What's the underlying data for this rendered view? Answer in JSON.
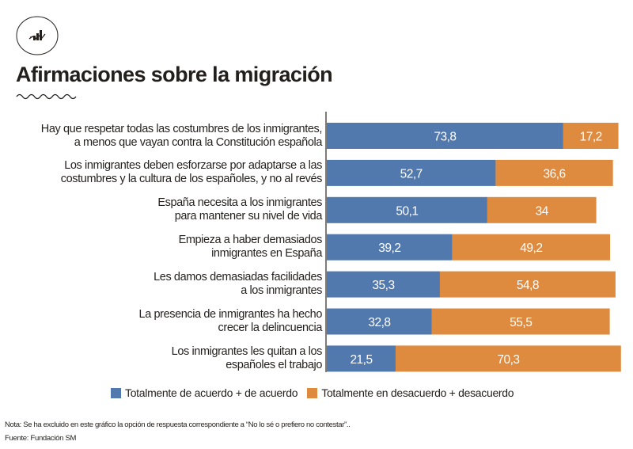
{
  "header": {
    "logo_icon": "chart-trend-icon",
    "title": "Afirmaciones sobre la migración"
  },
  "colors": {
    "agree": "#5279ad",
    "disagree": "#de8a3f",
    "axis": "#3a3430",
    "label_text": "#ffffff"
  },
  "chart_data": {
    "type": "bar",
    "orientation": "horizontal",
    "stacked": true,
    "title": "Afirmaciones sobre la migración",
    "xlabel": "",
    "ylabel": "",
    "grid": false,
    "legend_position": "bottom",
    "xlim": [
      0,
      100
    ],
    "categories": [
      [
        "Hay que respetar todas las costumbres de los inmigrantes,",
        "a menos que vayan contra la Constitución española"
      ],
      [
        "Los inmigrantes deben esforzarse por adaptarse a las",
        "costumbres y la cultura de los españoles, y no al revés"
      ],
      [
        "España necesita a los inmigrantes",
        "para mantener su nivel de vida"
      ],
      [
        "Empieza a haber demasiados",
        "inmigrantes en España"
      ],
      [
        "Les damos demasiadas facilidades",
        "a los inmigrantes"
      ],
      [
        "La presencia de inmigrantes ha hecho",
        "crecer la delincuencia"
      ],
      [
        "Los inmigrantes les quitan a los",
        "españoles el trabajo"
      ]
    ],
    "series": [
      {
        "name": "Totalmente de acuerdo + de acuerdo",
        "values": [
          73.8,
          52.7,
          50.1,
          39.2,
          35.3,
          32.8,
          21.5
        ],
        "labels": [
          "73,8",
          "52,7",
          "50,1",
          "39,2",
          "35,3",
          "32,8",
          "21,5"
        ]
      },
      {
        "name": "Totalmente en desacuerdo + desacuerdo",
        "values": [
          17.2,
          36.6,
          34,
          49.2,
          54.8,
          55.5,
          70.3
        ],
        "labels": [
          "17,2",
          "36,6",
          "34",
          "49,2",
          "54,8",
          "55,5",
          "70,3"
        ]
      }
    ]
  },
  "legend": {
    "items": [
      {
        "label": "Totalmente de acuerdo + de acuerdo",
        "color_key": "agree"
      },
      {
        "label": "Totalmente en desacuerdo + desacuerdo",
        "color_key": "disagree"
      }
    ]
  },
  "footer": {
    "note": "Nota: Se ha excluido en este gráfico la opción de respuesta correspondiente a “No lo sé o prefiero no contestar”..",
    "source": "Fuente: Fundación SM"
  }
}
